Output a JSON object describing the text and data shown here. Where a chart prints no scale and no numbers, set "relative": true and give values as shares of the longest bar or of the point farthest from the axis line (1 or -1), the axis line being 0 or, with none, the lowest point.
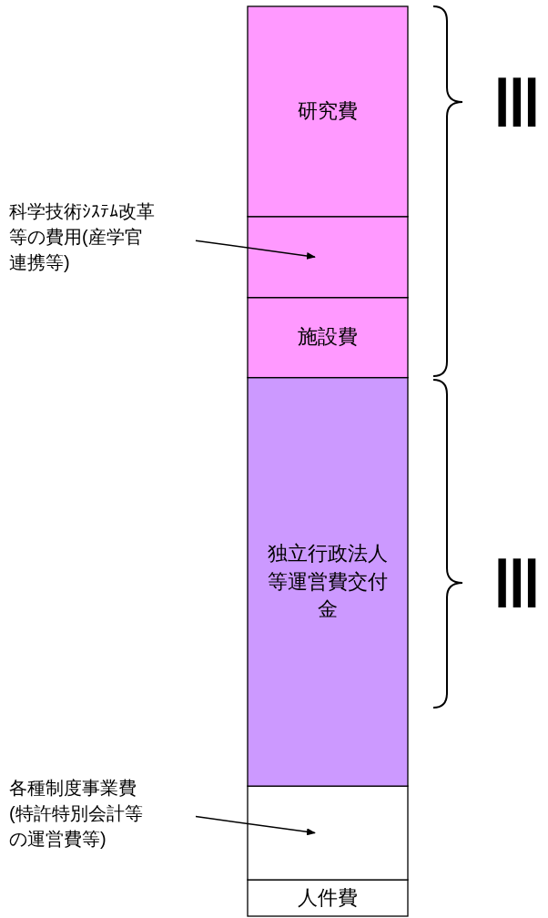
{
  "chart_data": {
    "type": "bar",
    "stacked": true,
    "relative": true,
    "categories": [
      null
    ],
    "series": [
      {
        "name": "人件費",
        "color": "#ffffff",
        "values": [
          0.04
        ]
      },
      {
        "color": "#ffffff",
        "values": [
          0.103
        ]
      },
      {
        "name": "独立行政法人等運営費交付金",
        "color": "#cc99ff",
        "values": [
          0.449
        ]
      },
      {
        "name": "施設費",
        "color": "#ff99ff",
        "values": [
          0.088
        ]
      },
      {
        "color": "#ff99ff",
        "values": [
          0.089
        ]
      },
      {
        "name": "研究費",
        "color": "#ff99ff",
        "values": [
          0.231
        ]
      }
    ],
    "annotations": [
      "科学技術ｼｽﾃﾑ改革等の費用(産学官連携等)",
      "各種制度事業費(特許特別会計等の運営費等)",
      "III",
      "III"
    ]
  }
}
